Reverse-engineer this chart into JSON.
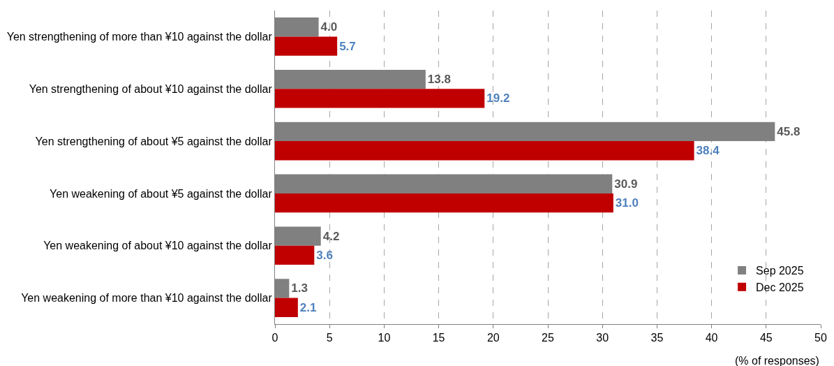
{
  "chart_data": {
    "type": "bar",
    "orientation": "horizontal",
    "categories": [
      "Yen strengthening of more than ¥10 against the dollar",
      "Yen strengthening of about ¥10 against the dollar",
      "Yen strengthening of about ¥5 against the dollar",
      "Yen weakening of about ¥5 against the dollar",
      "Yen weakening of about ¥10 against the dollar",
      "Yen weakening of more than ¥10 against the dollar"
    ],
    "series": [
      {
        "name": "Sep 2025",
        "color": "#808080",
        "values": [
          4.0,
          13.8,
          45.8,
          30.9,
          4.2,
          1.3
        ],
        "value_labels": [
          "4.0",
          "13.8",
          "45.8",
          "30.9",
          "4.2",
          "1.3"
        ]
      },
      {
        "name": "Dec 2025",
        "color": "#c00000",
        "values": [
          5.7,
          19.2,
          38.4,
          31.0,
          3.6,
          2.1
        ],
        "value_labels": [
          "5.7",
          "19.2",
          "38.4",
          "31.0",
          "3.6",
          "2.1"
        ]
      }
    ],
    "xlabel": "(% of responses)",
    "xlim": [
      0,
      50
    ],
    "xticks": [
      0,
      5,
      10,
      15,
      20,
      25,
      30,
      35,
      40,
      45,
      50
    ],
    "grid": "x",
    "legend": "bottom right"
  }
}
